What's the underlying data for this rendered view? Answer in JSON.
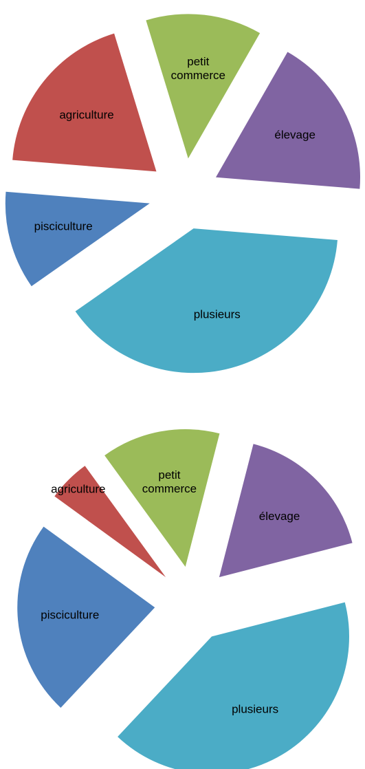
{
  "chart_data": [
    {
      "type": "pie",
      "categories": [
        "petit commerce",
        "élevage",
        "plusieurs",
        "pisciculture",
        "agriculture"
      ],
      "values": [
        13,
        18,
        39,
        11,
        19
      ],
      "colors": [
        "#9bbb59",
        "#8064a2",
        "#4bacc6",
        "#4f81bd",
        "#c0504d"
      ]
    },
    {
      "type": "pie",
      "categories": [
        "petit commerce",
        "élevage",
        "plusieurs",
        "pisciculture",
        "agriculture"
      ],
      "values": [
        14,
        17,
        41,
        23,
        5
      ],
      "colors": [
        "#9bbb59",
        "#8064a2",
        "#4bacc6",
        "#4f81bd",
        "#c0504d"
      ]
    }
  ]
}
